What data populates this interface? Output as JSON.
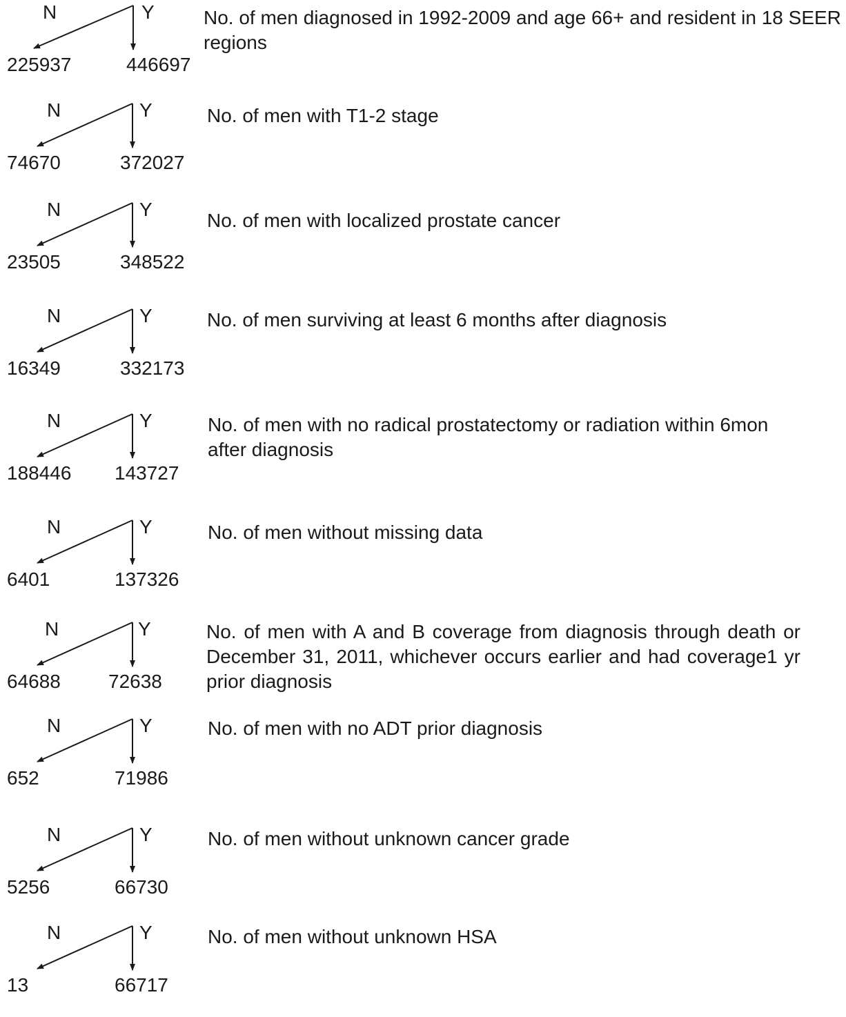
{
  "colors": {
    "text": "#1a1a1a",
    "line": "#1a1a1a",
    "background": "#ffffff"
  },
  "steps": [
    {
      "no_label": "N",
      "yes_label": "Y",
      "excluded": "225937",
      "retained": "446697",
      "criterion": "No. of men diagnosed in 1992-2009 and age 66+ and resident in 18 SEER regions"
    },
    {
      "no_label": "N",
      "yes_label": "Y",
      "excluded": "74670",
      "retained": "372027",
      "criterion": "No. of men with T1-2 stage"
    },
    {
      "no_label": "N",
      "yes_label": "Y",
      "excluded": "23505",
      "retained": "348522",
      "criterion": "No. of men with localized prostate cancer"
    },
    {
      "no_label": "N",
      "yes_label": "Y",
      "excluded": "16349",
      "retained": "332173",
      "criterion": "No. of men surviving at least 6 months after diagnosis"
    },
    {
      "no_label": "N",
      "yes_label": "Y",
      "excluded": "188446",
      "retained": "143727",
      "criterion": "No. of men with no radical prostatectomy or radiation within 6mon after diagnosis"
    },
    {
      "no_label": "N",
      "yes_label": "Y",
      "excluded": "6401",
      "retained": "137326",
      "criterion": "No. of men without missing data"
    },
    {
      "no_label": "N",
      "yes_label": "Y",
      "excluded": "64688",
      "retained": "72638",
      "criterion": "No. of men with A and B coverage from diagnosis through death or December 31, 2011, whichever occurs earlier and had coverage1 yr prior diagnosis"
    },
    {
      "no_label": "N",
      "yes_label": "Y",
      "excluded": "652",
      "retained": "71986",
      "criterion": "No. of men with no ADT prior diagnosis"
    },
    {
      "no_label": "N",
      "yes_label": "Y",
      "excluded": "5256",
      "retained": "66730",
      "criterion": "No. of men without unknown cancer grade"
    },
    {
      "no_label": "N",
      "yes_label": "Y",
      "excluded": "13",
      "retained": "66717",
      "criterion": "No. of men without unknown HSA"
    }
  ]
}
